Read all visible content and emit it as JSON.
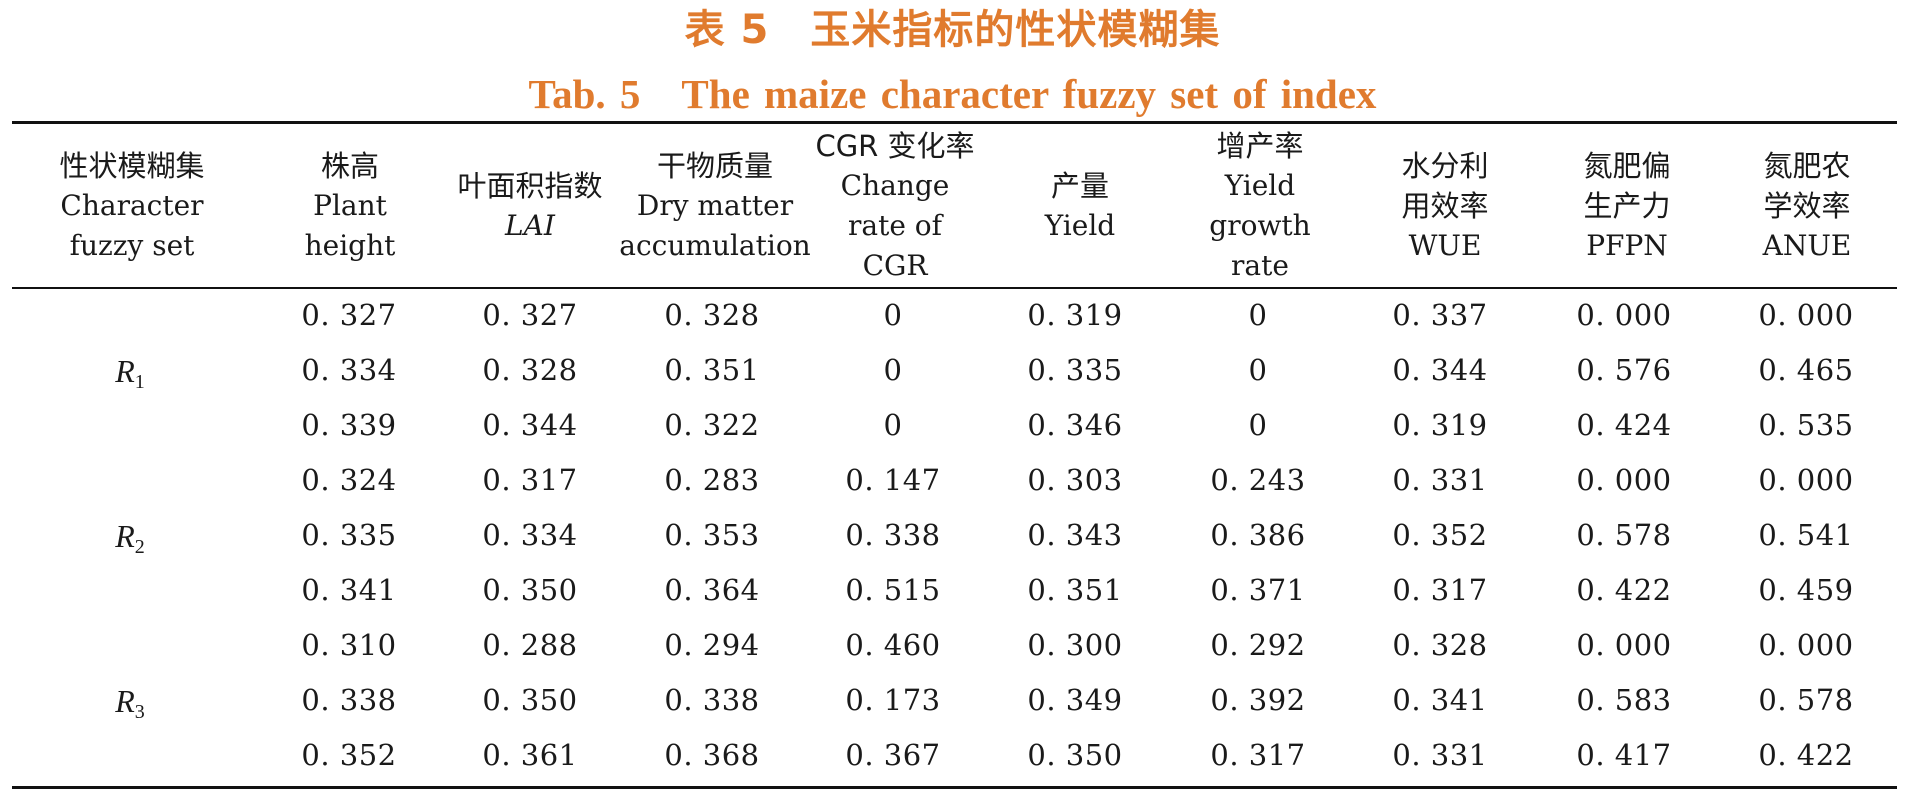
{
  "title_zh": "表 5　玉米指标的性状模糊集",
  "title_en": "Tab. 5　The maize character fuzzy set of index",
  "headers": [
    {
      "lines": [
        "性状模糊集",
        "Character",
        "fuzzy set"
      ]
    },
    {
      "lines": [
        "株高",
        "Plant",
        "height"
      ]
    },
    {
      "lines": [
        "叶面积指数",
        "LAI"
      ]
    },
    {
      "lines": [
        "干物质量",
        "Dry matter",
        "accumulation"
      ]
    },
    {
      "lines": [
        "CGR 变化率",
        "Change",
        "rate of",
        "CGR"
      ]
    },
    {
      "lines": [
        "产量",
        "Yield"
      ]
    },
    {
      "lines": [
        "增产率",
        "Yield",
        "growth",
        "rate"
      ]
    },
    {
      "lines": [
        "水分利",
        "用效率",
        "WUE"
      ]
    },
    {
      "lines": [
        "氮肥偏",
        "生产力",
        "PFPN"
      ]
    },
    {
      "lines": [
        "氮肥农",
        "学效率",
        "ANUE"
      ]
    }
  ],
  "groups": [
    {
      "label": "R",
      "sub": "1"
    },
    {
      "label": "R",
      "sub": "2"
    },
    {
      "label": "R",
      "sub": "3"
    }
  ],
  "rows": [
    [
      "0. 327",
      "0. 327",
      "0. 328",
      "0",
      "0. 319",
      "0",
      "0. 337",
      "0. 000",
      "0. 000"
    ],
    [
      "0. 334",
      "0. 328",
      "0. 351",
      "0",
      "0. 335",
      "0",
      "0. 344",
      "0. 576",
      "0. 465"
    ],
    [
      "0. 339",
      "0. 344",
      "0. 322",
      "0",
      "0. 346",
      "0",
      "0. 319",
      "0. 424",
      "0. 535"
    ],
    [
      "0. 324",
      "0. 317",
      "0. 283",
      "0. 147",
      "0. 303",
      "0. 243",
      "0. 331",
      "0. 000",
      "0. 000"
    ],
    [
      "0. 335",
      "0. 334",
      "0. 353",
      "0. 338",
      "0. 343",
      "0. 386",
      "0. 352",
      "0. 578",
      "0. 541"
    ],
    [
      "0. 341",
      "0. 350",
      "0. 364",
      "0. 515",
      "0. 351",
      "0. 371",
      "0. 317",
      "0. 422",
      "0. 459"
    ],
    [
      "0. 310",
      "0. 288",
      "0. 294",
      "0. 460",
      "0. 300",
      "0. 292",
      "0. 328",
      "0. 000",
      "0. 000"
    ],
    [
      "0. 338",
      "0. 350",
      "0. 338",
      "0. 173",
      "0. 349",
      "0. 392",
      "0. 341",
      "0. 583",
      "0. 578"
    ],
    [
      "0. 352",
      "0. 361",
      "0. 368",
      "0. 367",
      "0. 350",
      "0. 317",
      "0. 331",
      "0. 417",
      "0. 422"
    ]
  ]
}
